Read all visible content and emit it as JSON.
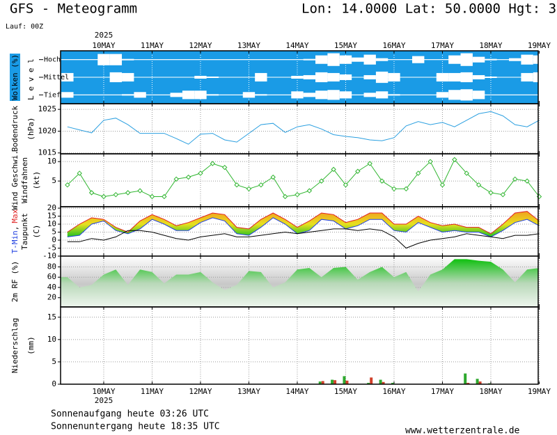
{
  "header": {
    "title": "GFS - Meteogramm",
    "location": "Lon: 14.0000 Lat: 50.0000 Hgt: 3",
    "run": "Lauf: 00Z"
  },
  "chart_data": [
    {
      "type": "cloud",
      "ylabel": "Wolken (%)",
      "level_label": "L e v e l",
      "year": "2025",
      "xlim": [
        -21.4,
        215.5
      ],
      "xticks": [
        {
          "value": 0,
          "label": "10MAY"
        },
        {
          "value": 24,
          "label": "11MAY"
        },
        {
          "value": 48,
          "label": "12MAY"
        },
        {
          "value": 72,
          "label": "13MAY"
        },
        {
          "value": 96,
          "label": "14MAY"
        },
        {
          "value": 120,
          "label": "15MAY"
        },
        {
          "value": 144,
          "label": "16MAY"
        },
        {
          "value": 168,
          "label": "17MAY"
        },
        {
          "value": 192,
          "label": "18MAY"
        },
        {
          "value": 216,
          "label": "19MAY"
        }
      ],
      "x": [
        -18,
        -12,
        -6,
        0,
        6,
        12,
        18,
        24,
        30,
        36,
        42,
        48,
        54,
        60,
        66,
        72,
        78,
        84,
        90,
        96,
        102,
        108,
        114,
        120,
        126,
        132,
        138,
        144,
        150,
        156,
        162,
        168,
        174,
        180,
        186,
        192,
        198,
        204,
        210,
        216
      ],
      "background": "#1a9be6",
      "color": "#ffffff",
      "grid": true,
      "series": [
        {
          "name": "Hoch",
          "values": [
            5,
            5,
            5,
            80,
            80,
            10,
            5,
            5,
            5,
            5,
            5,
            5,
            5,
            5,
            5,
            5,
            5,
            5,
            5,
            5,
            10,
            60,
            90,
            60,
            30,
            70,
            20,
            5,
            5,
            50,
            5,
            5,
            60,
            90,
            40,
            10,
            5,
            20,
            70,
            60
          ]
        },
        {
          "name": "Mittel",
          "values": [
            60,
            5,
            5,
            5,
            70,
            60,
            5,
            5,
            5,
            5,
            5,
            20,
            10,
            5,
            5,
            5,
            60,
            5,
            5,
            20,
            30,
            70,
            60,
            40,
            5,
            30,
            80,
            60,
            5,
            5,
            5,
            60,
            60,
            70,
            30,
            10,
            5,
            5,
            60,
            70
          ]
        },
        {
          "name": "Tief",
          "values": [
            40,
            5,
            5,
            5,
            5,
            10,
            40,
            5,
            5,
            30,
            60,
            60,
            10,
            5,
            5,
            40,
            10,
            5,
            5,
            50,
            30,
            60,
            70,
            50,
            5,
            30,
            50,
            10,
            5,
            5,
            5,
            40,
            70,
            80,
            60,
            5,
            5,
            5,
            5,
            5
          ]
        }
      ]
    },
    {
      "type": "line",
      "ylabel": "Bodendruck",
      "yunit": "(hPa)",
      "xlim": [
        -21.4,
        215.5
      ],
      "xticks": [
        {
          "value": 0,
          "label": "10MAY"
        },
        {
          "value": 24,
          "label": "11MAY"
        },
        {
          "value": 48,
          "label": "12MAY"
        },
        {
          "value": 72,
          "label": "13MAY"
        },
        {
          "value": 96,
          "label": "14MAY"
        },
        {
          "value": 120,
          "label": "15MAY"
        },
        {
          "value": 144,
          "label": "16MAY"
        },
        {
          "value": 168,
          "label": "17MAY"
        },
        {
          "value": 192,
          "label": "18MAY"
        },
        {
          "value": 216,
          "label": "19MAY"
        }
      ],
      "x": [
        -18,
        -12,
        -6,
        0,
        6,
        12,
        18,
        24,
        30,
        36,
        42,
        48,
        54,
        60,
        66,
        72,
        78,
        84,
        90,
        96,
        102,
        108,
        114,
        120,
        126,
        132,
        138,
        144,
        150,
        156,
        162,
        168,
        174,
        180,
        186,
        192,
        198,
        204,
        210,
        216
      ],
      "ylim": [
        1014.8,
        1026.3
      ],
      "yticks": [
        1015,
        1020,
        1025
      ],
      "grid": true,
      "series": [
        {
          "color": "#2a9fe0",
          "values": [
            1021,
            1020.3,
            1019.6,
            1022.5,
            1023,
            1021.5,
            1019.5,
            1019.5,
            1019.5,
            1018.3,
            1017,
            1019.3,
            1019.5,
            1018,
            1017.5,
            1019.5,
            1021.5,
            1021.8,
            1019.7,
            1021,
            1021.5,
            1020.5,
            1019.2,
            1018.8,
            1018.5,
            1018,
            1017.8,
            1018.5,
            1021.2,
            1022.2,
            1021.5,
            1022,
            1021,
            1022.5,
            1024,
            1024.5,
            1023.5,
            1021.5,
            1021,
            1022.5
          ]
        }
      ]
    },
    {
      "type": "line",
      "ylabel": "Windfahnen",
      "yunit": "(kt)",
      "markers": "diamond",
      "xlim": [
        -21.4,
        215.5
      ],
      "xticks": [
        {
          "value": 0,
          "label": "10MAY"
        },
        {
          "value": 24,
          "label": "11MAY"
        },
        {
          "value": 48,
          "label": "12MAY"
        },
        {
          "value": 72,
          "label": "13MAY"
        },
        {
          "value": 96,
          "label": "14MAY"
        },
        {
          "value": 120,
          "label": "15MAY"
        },
        {
          "value": 144,
          "label": "16MAY"
        },
        {
          "value": 168,
          "label": "17MAY"
        },
        {
          "value": 192,
          "label": "18MAY"
        },
        {
          "value": 216,
          "label": "19MAY"
        }
      ],
      "x": [
        -18,
        -12,
        -6,
        0,
        6,
        12,
        18,
        24,
        30,
        36,
        42,
        48,
        54,
        60,
        66,
        72,
        78,
        84,
        90,
        96,
        102,
        108,
        114,
        120,
        126,
        132,
        138,
        144,
        150,
        156,
        162,
        168,
        174,
        180,
        186,
        192,
        198,
        204,
        210,
        216
      ],
      "ylim": [
        -1.6,
        12
      ],
      "yticks": [
        5,
        10
      ],
      "grid": true,
      "series": [
        {
          "name": "Wind Geschwi.",
          "color": "#2fb52f",
          "values": [
            4,
            7,
            2,
            1,
            1.5,
            2,
            2.5,
            1,
            1,
            5.5,
            6,
            7,
            9.5,
            8.5,
            4,
            3,
            4,
            6,
            1,
            1.5,
            2.5,
            5,
            8,
            4,
            7.5,
            9.5,
            5,
            3,
            3,
            7,
            10,
            4,
            10.5,
            7,
            4,
            2,
            1.5,
            5.5,
            5,
            1
          ]
        }
      ]
    },
    {
      "type": "line",
      "ylabel_sep": ",",
      "yunit": "(C)",
      "range_fill": true,
      "xlim": [
        -21.4,
        215.5
      ],
      "xticks": [
        {
          "value": 0,
          "label": "10MAY"
        },
        {
          "value": 24,
          "label": "11MAY"
        },
        {
          "value": 48,
          "label": "12MAY"
        },
        {
          "value": 72,
          "label": "13MAY"
        },
        {
          "value": 96,
          "label": "14MAY"
        },
        {
          "value": 120,
          "label": "15MAY"
        },
        {
          "value": 144,
          "label": "16MAY"
        },
        {
          "value": 168,
          "label": "17MAY"
        },
        {
          "value": 192,
          "label": "18MAY"
        },
        {
          "value": 216,
          "label": "19MAY"
        }
      ],
      "x": [
        -18,
        -12,
        -6,
        0,
        6,
        12,
        18,
        24,
        30,
        36,
        42,
        48,
        54,
        60,
        66,
        72,
        78,
        84,
        90,
        96,
        102,
        108,
        114,
        120,
        126,
        132,
        138,
        144,
        150,
        156,
        162,
        168,
        174,
        180,
        186,
        192,
        198,
        204,
        210,
        216
      ],
      "ylim": [
        -10,
        20.9
      ],
      "yticks": [
        -10,
        -5,
        0,
        5,
        10,
        15,
        20
      ],
      "grid": true,
      "series": [
        {
          "name": "T-Min",
          "color": "#2040e0",
          "values": [
            2,
            3,
            10,
            12,
            6,
            4,
            7,
            13,
            10,
            6,
            6,
            11,
            14,
            12,
            4,
            3,
            8,
            14,
            10,
            4,
            6,
            13,
            12,
            7,
            9,
            13,
            13,
            6,
            5,
            11,
            8,
            5,
            6,
            5,
            5,
            2,
            6,
            11,
            13,
            9
          ]
        },
        {
          "name": "Max",
          "color": "#e02020",
          "values": [
            5,
            10,
            14,
            13,
            8,
            5,
            12,
            16,
            13,
            9,
            11,
            14,
            17,
            16,
            8,
            7,
            13,
            17,
            13,
            8,
            12,
            17,
            16,
            11,
            13,
            17,
            17,
            10,
            10,
            15,
            11,
            9,
            10,
            8,
            8,
            4,
            10,
            17,
            18,
            12
          ]
        },
        {
          "name": "Taupunkt",
          "color": "#000000",
          "values": [
            -1,
            -1,
            1,
            0,
            2,
            6,
            6,
            5,
            3,
            1,
            0,
            2,
            3,
            4,
            2,
            2,
            3,
            4,
            5,
            4,
            5,
            6,
            7,
            7,
            6,
            7,
            6,
            2,
            -5,
            -2,
            0,
            1,
            2,
            4,
            3,
            2,
            1,
            3,
            3,
            4
          ]
        }
      ]
    },
    {
      "type": "area",
      "xlim": [
        -21.4,
        215.5
      ],
      "xticks": [
        {
          "value": 0,
          "label": "10MAY"
        },
        {
          "value": 24,
          "label": "11MAY"
        },
        {
          "value": 48,
          "label": "12MAY"
        },
        {
          "value": 72,
          "label": "13MAY"
        },
        {
          "value": 96,
          "label": "14MAY"
        },
        {
          "value": 120,
          "label": "15MAY"
        },
        {
          "value": 144,
          "label": "16MAY"
        },
        {
          "value": 168,
          "label": "17MAY"
        },
        {
          "value": 192,
          "label": "18MAY"
        },
        {
          "value": 216,
          "label": "19MAY"
        }
      ],
      "x": [
        -18,
        -12,
        -6,
        0,
        6,
        12,
        18,
        24,
        30,
        36,
        42,
        48,
        54,
        60,
        66,
        72,
        78,
        84,
        90,
        96,
        102,
        108,
        114,
        120,
        126,
        132,
        138,
        144,
        150,
        156,
        162,
        168,
        174,
        180,
        186,
        192,
        198,
        204,
        210,
        216
      ],
      "ylim": [
        2,
        101
      ],
      "yticks": [
        20,
        40,
        60,
        80
      ],
      "grid": true,
      "series": [
        {
          "name": "2m RF (%)",
          "color": "#1ec21e",
          "values": [
            60,
            40,
            45,
            65,
            75,
            45,
            75,
            70,
            48,
            65,
            65,
            70,
            50,
            35,
            45,
            72,
            70,
            40,
            50,
            75,
            78,
            60,
            78,
            80,
            55,
            70,
            80,
            60,
            70,
            32,
            65,
            75,
            95,
            95,
            92,
            90,
            75,
            50,
            75,
            78
          ]
        }
      ]
    },
    {
      "type": "bar",
      "ylabel": "Niederschlag",
      "yunit": "(mm)",
      "year": "2025",
      "xlim": [
        -21.4,
        215.5
      ],
      "xticks": [
        {
          "value": 0,
          "label": "10MAY"
        },
        {
          "value": 24,
          "label": "11MAY"
        },
        {
          "value": 48,
          "label": "12MAY"
        },
        {
          "value": 72,
          "label": "13MAY"
        },
        {
          "value": 96,
          "label": "14MAY"
        },
        {
          "value": 120,
          "label": "15MAY"
        },
        {
          "value": 144,
          "label": "16MAY"
        },
        {
          "value": 168,
          "label": "17MAY"
        },
        {
          "value": 192,
          "label": "18MAY"
        },
        {
          "value": 216,
          "label": "19MAY"
        }
      ],
      "x": [
        -18,
        -12,
        -6,
        0,
        6,
        12,
        18,
        24,
        30,
        36,
        42,
        48,
        54,
        60,
        66,
        72,
        78,
        84,
        90,
        96,
        102,
        108,
        114,
        120,
        126,
        132,
        138,
        144,
        150,
        156,
        162,
        168,
        174,
        180,
        186,
        192,
        198,
        204,
        210,
        216
      ],
      "ylim": [
        0,
        17.3
      ],
      "yticks": [
        0,
        5,
        10,
        15
      ],
      "grid": true,
      "series": [
        {
          "color": "#2ea82e",
          "values": [
            0,
            0,
            0,
            0,
            0,
            0,
            0,
            0,
            0,
            0,
            0,
            0,
            0,
            0,
            0,
            0,
            0,
            0,
            0,
            0,
            0,
            0.6,
            1.0,
            1.8,
            0,
            0.3,
            1.0,
            0.3,
            0,
            0,
            0,
            0,
            0,
            2.4,
            1.2,
            0.2,
            0,
            0,
            0,
            0
          ]
        },
        {
          "color": "#d0402a",
          "values": [
            0,
            0,
            0,
            0,
            0,
            0,
            0,
            0,
            0,
            0,
            0,
            0,
            0,
            0,
            0,
            0,
            0,
            0,
            0,
            0,
            0,
            0.7,
            0.9,
            0.8,
            0,
            1.5,
            0.5,
            0,
            0,
            0,
            0,
            0,
            0,
            0.3,
            0.6,
            0.1,
            0,
            0,
            0,
            0
          ]
        }
      ]
    }
  ],
  "footer": {
    "sunrise": "Sonnenaufgang heute 03:26 UTC",
    "sunset": "Sonnenuntergang heute 18:35 UTC",
    "source": "www.wetterzentrale.de"
  }
}
